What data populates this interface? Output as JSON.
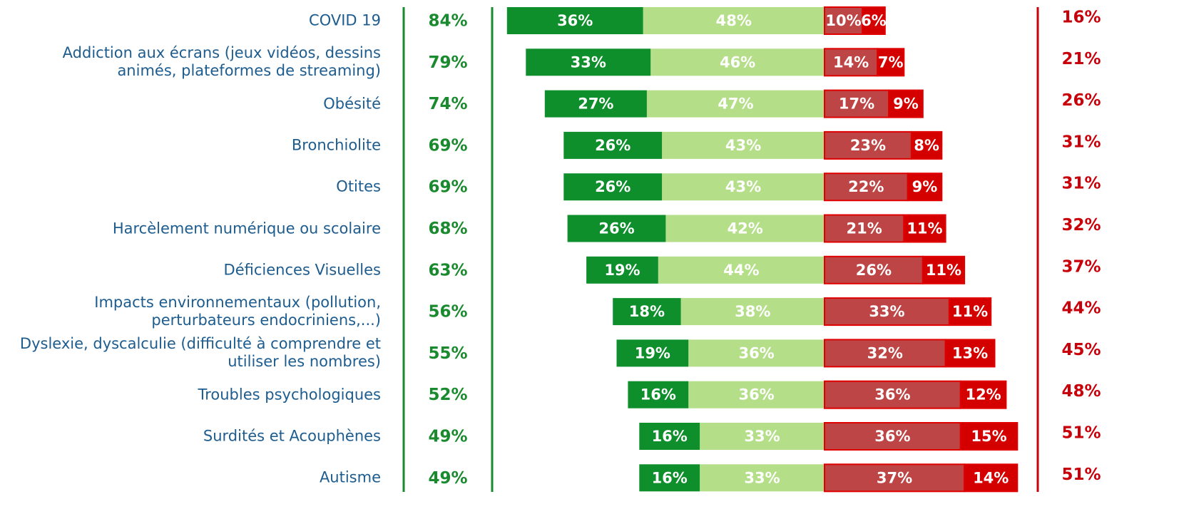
{
  "chart_data": {
    "type": "diverging_bar",
    "categories": [
      "COVID 19",
      "Addiction aux écrans (jeux vidéos, dessins animés, plateformes de streaming)",
      "Obésité",
      "Bronchiolite",
      "Otites",
      "Harcèlement numérique ou scolaire",
      "Déficiences Visuelles",
      "Impacts environnementaux (pollution, perturbateurs endocriniens,...)",
      "Dyslexie, dyscalculie (difficulté à comprendre et utiliser les nombres)",
      "Troubles psychologiques",
      "Surdités et Acouphènes",
      "Autisme"
    ],
    "series": [
      {
        "color": "#0e8f2c",
        "side": "left",
        "values": [
          36,
          33,
          27,
          26,
          26,
          26,
          19,
          18,
          19,
          16,
          16,
          16
        ],
        "value_labels": [
          "36%",
          "33%",
          "27%",
          "26%",
          "26%",
          "26%",
          "19%",
          "18%",
          "19%",
          "16%",
          "16%",
          "16%"
        ]
      },
      {
        "color": "#b4df88",
        "side": "left",
        "values": [
          48,
          46,
          47,
          43,
          43,
          42,
          44,
          38,
          36,
          36,
          33,
          33
        ],
        "value_labels": [
          "48%",
          "46%",
          "47%",
          "43%",
          "43%",
          "42%",
          "44%",
          "38%",
          "36%",
          "36%",
          "33%",
          "33%"
        ]
      },
      {
        "color": "#bd4545",
        "side": "right",
        "values": [
          10,
          14,
          17,
          23,
          22,
          21,
          26,
          33,
          32,
          36,
          36,
          37
        ],
        "value_labels": [
          "10%",
          "14%",
          "17%",
          "23%",
          "22%",
          "21%",
          "26%",
          "33%",
          "32%",
          "36%",
          "36%",
          "37%"
        ]
      },
      {
        "color": "#d40000",
        "side": "right",
        "values": [
          6,
          7,
          9,
          8,
          9,
          11,
          11,
          11,
          13,
          12,
          15,
          14
        ],
        "value_labels": [
          "6%",
          "7%",
          "9%",
          "8%",
          "9%",
          "11%",
          "11%",
          "11%",
          "13%",
          "12%",
          "15%",
          "14%"
        ]
      }
    ],
    "totals": [
      {
        "color": "#1a8a2e",
        "values": [
          84,
          79,
          74,
          69,
          69,
          68,
          63,
          56,
          55,
          52,
          49,
          49
        ],
        "value_labels": [
          "84%",
          "79%",
          "74%",
          "69%",
          "69%",
          "68%",
          "63%",
          "56%",
          "55%",
          "52%",
          "49%",
          "49%"
        ]
      },
      {
        "color": "#c8000a",
        "values": [
          16,
          21,
          26,
          31,
          31,
          32,
          37,
          44,
          45,
          48,
          51,
          51
        ],
        "value_labels": [
          "16%",
          "21%",
          "26%",
          "31%",
          "31%",
          "32%",
          "37%",
          "44%",
          "45%",
          "48%",
          "51%",
          "51%"
        ]
      }
    ]
  }
}
